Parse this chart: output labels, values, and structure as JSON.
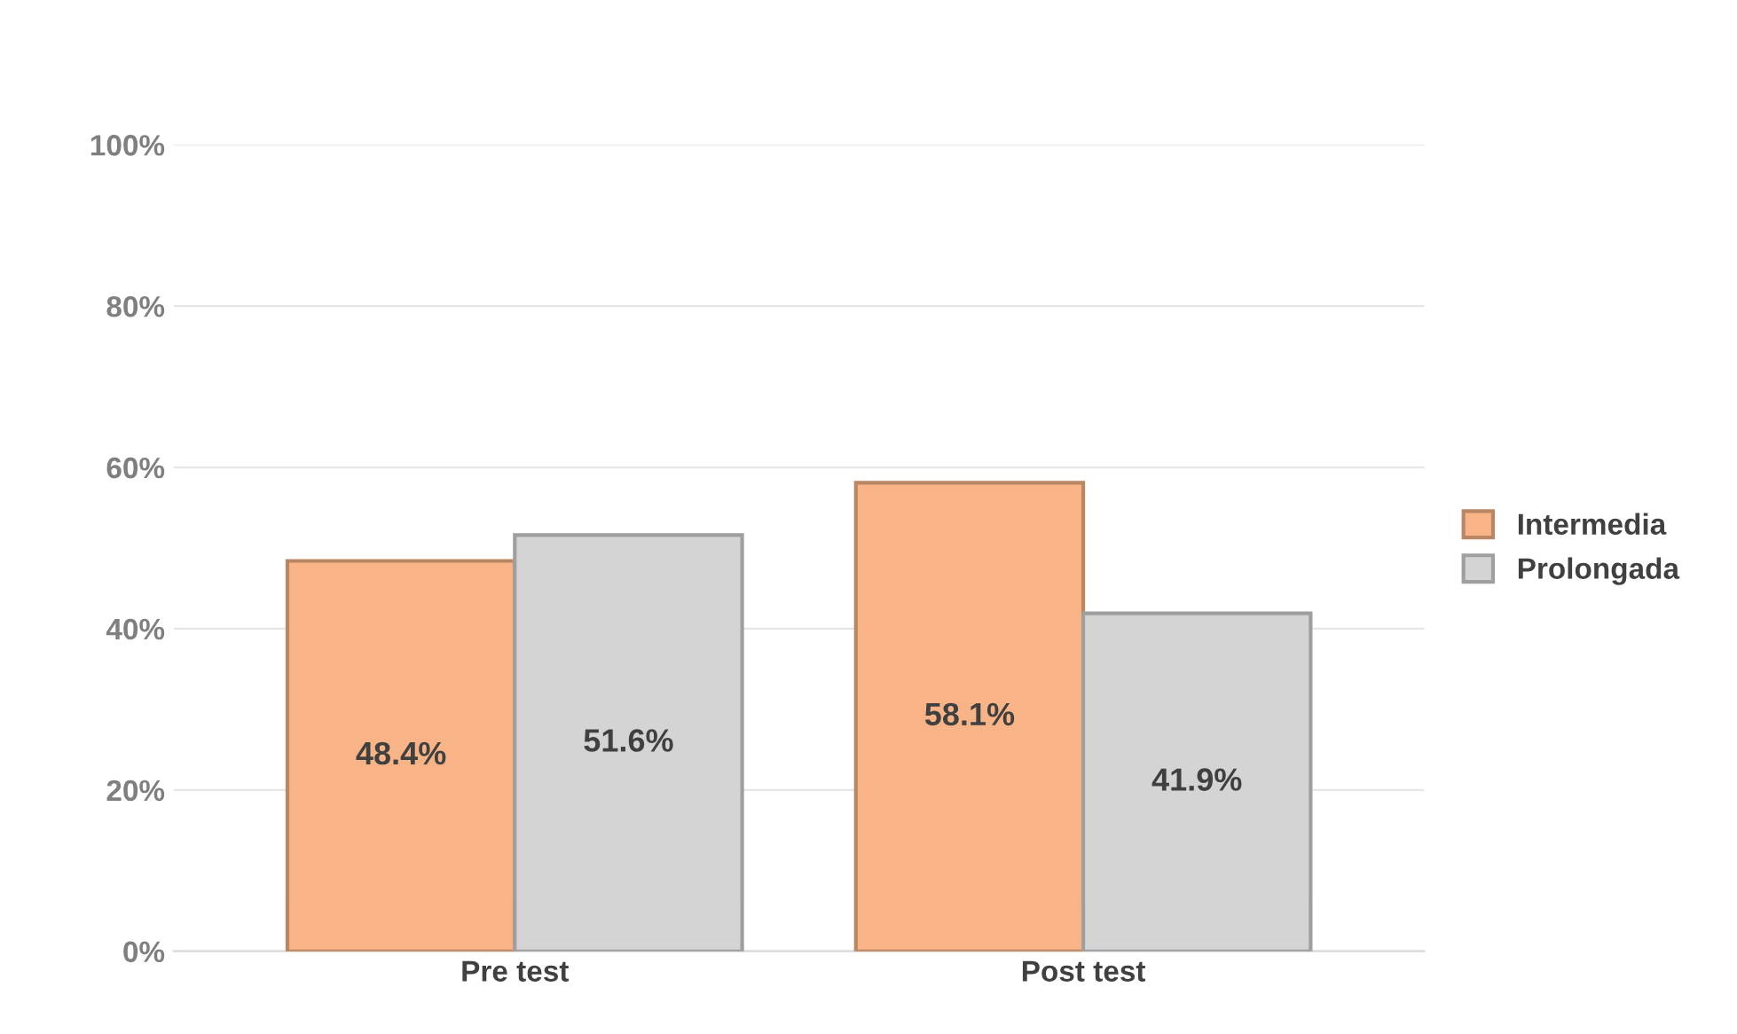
{
  "chart_data": {
    "type": "bar",
    "categories": [
      "Pre test",
      "Post test"
    ],
    "series": [
      {
        "name": "Intermedia",
        "color": "#f8b486",
        "values": [
          48.4,
          58.1
        ],
        "value_labels": [
          "48.4%",
          "58.1%"
        ]
      },
      {
        "name": "Prolongada",
        "color": "#d4d4d4",
        "values": [
          51.6,
          41.9
        ],
        "value_labels": [
          "51.6%",
          "41.9%"
        ]
      }
    ],
    "ylim": [
      0,
      100
    ],
    "yticks": [
      {
        "value": 0,
        "label": "0%"
      },
      {
        "value": 20,
        "label": "20%"
      },
      {
        "value": 40,
        "label": "40%"
      },
      {
        "value": 60,
        "label": "60%"
      },
      {
        "value": 80,
        "label": "80%"
      },
      {
        "value": 100,
        "label": "100%"
      }
    ],
    "grid": "y",
    "legend": "right"
  }
}
